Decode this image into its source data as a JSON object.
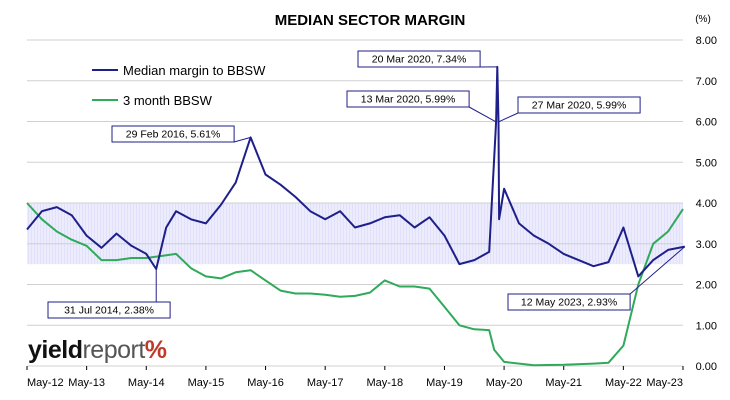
{
  "chart_data": {
    "type": "line",
    "title": "MEDIAN SECTOR MARGIN",
    "y_unit_label": "(%)",
    "ylim": [
      0,
      8
    ],
    "y_ticks": [
      "0.00",
      "1.00",
      "2.00",
      "3.00",
      "4.00",
      "5.00",
      "6.00",
      "7.00",
      "8.00"
    ],
    "x_tick_labels": [
      "May-12",
      "May-13",
      "May-14",
      "May-15",
      "May-16",
      "May-17",
      "May-18",
      "May-19",
      "May-20",
      "May-21",
      "May-22",
      "May-23"
    ],
    "xlim": [
      "2012-05",
      "2023-05"
    ],
    "grid": "horizontal",
    "legend_position": "top-left",
    "shaded_band": {
      "y_range": [
        2.5,
        4.0
      ],
      "color": "#c8c8f8"
    },
    "series": [
      {
        "name": "Median margin to BBSW",
        "color": "#1f1f8a",
        "points": [
          [
            "2012-05",
            3.35
          ],
          [
            "2012-08",
            3.8
          ],
          [
            "2012-11",
            3.9
          ],
          [
            "2013-02",
            3.7
          ],
          [
            "2013-05",
            3.2
          ],
          [
            "2013-08",
            2.9
          ],
          [
            "2013-11",
            3.25
          ],
          [
            "2014-02",
            2.95
          ],
          [
            "2014-05",
            2.75
          ],
          [
            "2014-07",
            2.38
          ],
          [
            "2014-09",
            3.4
          ],
          [
            "2014-11",
            3.8
          ],
          [
            "2015-02",
            3.6
          ],
          [
            "2015-05",
            3.5
          ],
          [
            "2015-08",
            3.95
          ],
          [
            "2015-11",
            4.5
          ],
          [
            "2016-02",
            5.61
          ],
          [
            "2016-05",
            4.7
          ],
          [
            "2016-08",
            4.45
          ],
          [
            "2016-11",
            4.15
          ],
          [
            "2017-02",
            3.8
          ],
          [
            "2017-05",
            3.6
          ],
          [
            "2017-08",
            3.8
          ],
          [
            "2017-11",
            3.4
          ],
          [
            "2018-02",
            3.5
          ],
          [
            "2018-05",
            3.65
          ],
          [
            "2018-08",
            3.7
          ],
          [
            "2018-11",
            3.4
          ],
          [
            "2019-02",
            3.65
          ],
          [
            "2019-05",
            3.2
          ],
          [
            "2019-08",
            2.5
          ],
          [
            "2019-11",
            2.6
          ],
          [
            "2020-02",
            2.8
          ],
          [
            "2020-03-13",
            5.99
          ],
          [
            "2020-03-20",
            7.34
          ],
          [
            "2020-03-27",
            5.99
          ],
          [
            "2020-04",
            3.6
          ],
          [
            "2020-05",
            4.35
          ],
          [
            "2020-08",
            3.5
          ],
          [
            "2020-11",
            3.2
          ],
          [
            "2021-02",
            3.0
          ],
          [
            "2021-05",
            2.75
          ],
          [
            "2021-08",
            2.6
          ],
          [
            "2021-11",
            2.45
          ],
          [
            "2022-02",
            2.55
          ],
          [
            "2022-05",
            3.4
          ],
          [
            "2022-08",
            2.2
          ],
          [
            "2022-11",
            2.6
          ],
          [
            "2023-02",
            2.85
          ],
          [
            "2023-05-12",
            2.93
          ]
        ]
      },
      {
        "name": "3 month BBSW",
        "color": "#2eaa5a",
        "points": [
          [
            "2012-05",
            4.0
          ],
          [
            "2012-08",
            3.6
          ],
          [
            "2012-11",
            3.3
          ],
          [
            "2013-02",
            3.1
          ],
          [
            "2013-05",
            2.95
          ],
          [
            "2013-08",
            2.6
          ],
          [
            "2013-11",
            2.6
          ],
          [
            "2014-02",
            2.65
          ],
          [
            "2014-05",
            2.65
          ],
          [
            "2014-08",
            2.7
          ],
          [
            "2014-11",
            2.75
          ],
          [
            "2015-02",
            2.4
          ],
          [
            "2015-05",
            2.2
          ],
          [
            "2015-08",
            2.15
          ],
          [
            "2015-11",
            2.3
          ],
          [
            "2016-02",
            2.35
          ],
          [
            "2016-05",
            2.1
          ],
          [
            "2016-08",
            1.85
          ],
          [
            "2016-11",
            1.78
          ],
          [
            "2017-02",
            1.78
          ],
          [
            "2017-05",
            1.75
          ],
          [
            "2017-08",
            1.7
          ],
          [
            "2017-11",
            1.72
          ],
          [
            "2018-02",
            1.8
          ],
          [
            "2018-05",
            2.1
          ],
          [
            "2018-08",
            1.95
          ],
          [
            "2018-11",
            1.95
          ],
          [
            "2019-02",
            1.9
          ],
          [
            "2019-05",
            1.45
          ],
          [
            "2019-08",
            1.0
          ],
          [
            "2019-11",
            0.9
          ],
          [
            "2020-02",
            0.88
          ],
          [
            "2020-03",
            0.4
          ],
          [
            "2020-05",
            0.1
          ],
          [
            "2020-11",
            0.02
          ],
          [
            "2021-05",
            0.03
          ],
          [
            "2021-11",
            0.06
          ],
          [
            "2022-02",
            0.08
          ],
          [
            "2022-05",
            0.5
          ],
          [
            "2022-08",
            2.0
          ],
          [
            "2022-11",
            3.0
          ],
          [
            "2023-02",
            3.3
          ],
          [
            "2023-05",
            3.85
          ]
        ]
      }
    ],
    "annotations": [
      {
        "text": "29 Feb 2016,  5.61%",
        "date": "2016-02",
        "value": 5.61
      },
      {
        "text": "20 Mar 2020,  7.34%",
        "date": "2020-03-20",
        "value": 7.34
      },
      {
        "text": "13 Mar 2020,  5.99%",
        "date": "2020-03-13",
        "value": 5.99
      },
      {
        "text": "27 Mar 2020,  5.99%",
        "date": "2020-03-27",
        "value": 5.99
      },
      {
        "text": "31 Jul 2014,  2.38%",
        "date": "2014-07",
        "value": 2.38
      },
      {
        "text": "12 May 2023,  2.93%",
        "date": "2023-05-12",
        "value": 2.93
      }
    ]
  },
  "logo": {
    "part1": "yield",
    "part2": "report",
    "part3": "%"
  }
}
